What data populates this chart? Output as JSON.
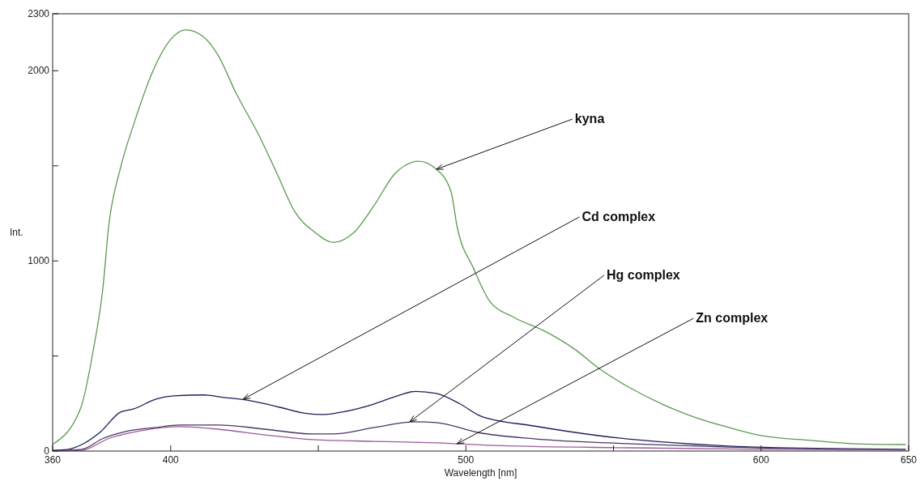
{
  "chart_data": {
    "type": "line",
    "xlabel": "Wavelength [nm]",
    "ylabel": "Int.",
    "xlim": [
      360,
      650
    ],
    "ylim": [
      0,
      2300
    ],
    "xticks": [
      360,
      400,
      {
        "value": 450,
        "label": null
      },
      500,
      {
        "value": 550,
        "label": null
      },
      600,
      650
    ],
    "yticks": [
      0,
      {
        "value": 500,
        "label": null
      },
      1000,
      {
        "value": 1500,
        "label": null
      },
      2000,
      2300
    ],
    "grid": false,
    "marker": "none",
    "line_style": "solid",
    "series": [
      {
        "color": "#5a9a4e",
        "x": [
          360,
          369.6,
          373.7,
          377,
          379,
          383,
          387.5,
          394,
          400,
          405,
          411,
          416,
          422,
          430,
          436,
          442,
          449,
          455,
          462,
          469,
          476,
          484,
          490,
          495,
          497,
          502.6,
          508,
          516,
          526,
          537,
          545.4,
          556,
          567,
          578,
          589,
          600,
          617,
          633,
          649
        ],
        "values": [
          35,
          230,
          525,
          854,
          1183,
          1490,
          1720,
          2000,
          2165,
          2215,
          2180,
          2083,
          1887,
          1657,
          1460,
          1260,
          1149,
          1097,
          1149,
          1294,
          1460,
          1524,
          1482,
          1362,
          1183,
          961,
          790,
          705,
          636,
          534,
          431,
          329,
          243,
          175,
          124,
          81,
          56,
          38,
          34
        ]
      },
      {
        "color": "#1c1c5c",
        "x": [
          360,
          365,
          370,
          376,
          383,
          387.5,
          395,
          401,
          411,
          418,
          427,
          437,
          445,
          452,
          458,
          469,
          476,
          483,
          490,
          498,
          505,
          523,
          545,
          567,
          589,
          622,
          649
        ],
        "values": [
          4,
          8,
          35,
          98,
          205,
          222,
          273,
          290,
          295,
          282,
          265,
          230,
          200,
          192,
          205,
          248,
          286,
          314,
          303,
          248,
          184,
          132,
          81,
          47,
          26,
          13,
          9
        ]
      },
      {
        "color": "#4a3462",
        "x": [
          360,
          365,
          370,
          377,
          384.5,
          395,
          403,
          416,
          432,
          448,
          455,
          469,
          483,
          490,
          504,
          523,
          556,
          589,
          649
        ],
        "values": [
          2,
          4,
          9,
          66,
          102,
          124,
          137,
          137,
          115,
          90,
          90,
          124,
          154,
          150,
          98,
          64,
          38,
          21,
          6
        ]
      },
      {
        "color": "#9a5a9a",
        "x": [
          360,
          365,
          370,
          379,
          390,
          403,
          416,
          432,
          448,
          469,
          490,
          512,
          556,
          600,
          649
        ],
        "values": [
          1,
          2,
          4,
          66,
          107,
          128,
          115,
          85,
          60,
          51,
          43,
          28,
          17,
          9,
          6
        ]
      }
    ],
    "annotations": [
      {
        "text": "kyna",
        "x": 490,
        "y": 1482
      },
      {
        "text": "Cd complex",
        "x": 424.6,
        "y": 273
      },
      {
        "text": "Hg complex",
        "x": 481,
        "y": 154
      },
      {
        "text": "Zn complex",
        "x": 497,
        "y": 38
      }
    ]
  }
}
